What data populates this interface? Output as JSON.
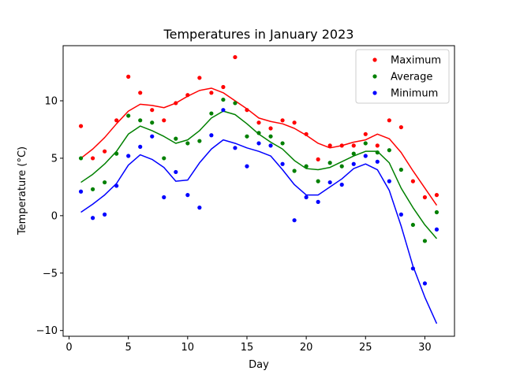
{
  "chart_data": {
    "type": "scatter",
    "title": "Temperatures in January 2023",
    "xlabel": "Day",
    "ylabel": "Temperature (°C)",
    "xlim": [
      -0.5,
      32.5
    ],
    "ylim": [
      -10.5,
      14.8
    ],
    "xticks": [
      0,
      5,
      10,
      15,
      20,
      25,
      30
    ],
    "yticks": [
      -10,
      -5,
      0,
      5,
      10
    ],
    "grid": false,
    "legend_position": "top-right",
    "x": [
      1,
      2,
      3,
      4,
      5,
      6,
      7,
      8,
      9,
      10,
      11,
      12,
      13,
      14,
      15,
      16,
      17,
      18,
      19,
      20,
      21,
      22,
      23,
      24,
      25,
      26,
      27,
      28,
      29,
      30,
      31
    ],
    "series": [
      {
        "name": "Maximum",
        "color": "#ff0000",
        "points": [
          7.8,
          5.0,
          5.6,
          8.3,
          12.1,
          10.7,
          9.2,
          8.3,
          9.8,
          10.5,
          12.0,
          10.7,
          11.2,
          13.8,
          9.2,
          8.1,
          7.6,
          8.3,
          8.1,
          7.1,
          4.9,
          6.1,
          6.1,
          6.1,
          7.1,
          6.1,
          8.3,
          7.7,
          3.0,
          1.6,
          1.8
        ],
        "line": [
          5.0,
          5.8,
          6.8,
          8.0,
          9.1,
          9.7,
          9.6,
          9.4,
          9.8,
          10.4,
          10.9,
          11.1,
          10.7,
          10.0,
          9.3,
          8.5,
          8.2,
          8.0,
          7.6,
          7.0,
          6.3,
          5.9,
          6.1,
          6.4,
          6.6,
          7.1,
          6.7,
          5.5,
          3.9,
          2.4,
          0.9
        ]
      },
      {
        "name": "Average",
        "color": "#008000",
        "points": [
          5.0,
          2.3,
          2.9,
          5.4,
          8.7,
          8.3,
          8.1,
          5.0,
          6.7,
          6.3,
          6.5,
          8.9,
          10.1,
          9.8,
          6.9,
          7.2,
          6.9,
          6.3,
          3.9,
          4.3,
          3.0,
          4.6,
          4.3,
          5.4,
          6.3,
          5.5,
          5.7,
          4.0,
          -0.8,
          -2.2,
          0.3
        ],
        "line": [
          2.9,
          3.6,
          4.5,
          5.6,
          7.1,
          7.8,
          7.4,
          6.9,
          6.3,
          6.6,
          7.4,
          8.5,
          9.1,
          8.8,
          8.0,
          7.1,
          6.4,
          5.8,
          4.8,
          4.1,
          4.0,
          4.2,
          4.7,
          5.2,
          5.6,
          5.6,
          4.6,
          2.4,
          0.7,
          -0.8,
          -2.0
        ]
      },
      {
        "name": "Minimum",
        "color": "#0000ff",
        "points": [
          2.1,
          -0.2,
          0.1,
          2.6,
          5.2,
          6.0,
          6.9,
          1.6,
          3.8,
          1.8,
          0.7,
          7.0,
          9.2,
          5.9,
          4.3,
          6.3,
          6.1,
          4.5,
          -0.4,
          1.6,
          1.2,
          2.9,
          2.7,
          4.5,
          5.2,
          4.7,
          3.0,
          0.1,
          -4.6,
          -5.9,
          -1.2
        ],
        "line": [
          0.3,
          1.0,
          1.8,
          2.8,
          4.4,
          5.3,
          4.9,
          4.2,
          3.0,
          3.1,
          4.6,
          5.8,
          6.6,
          6.3,
          5.9,
          5.6,
          5.2,
          4.0,
          2.7,
          1.8,
          1.8,
          2.5,
          3.2,
          4.1,
          4.5,
          4.0,
          2.2,
          -0.9,
          -4.4,
          -7.1,
          -9.4
        ]
      }
    ]
  }
}
